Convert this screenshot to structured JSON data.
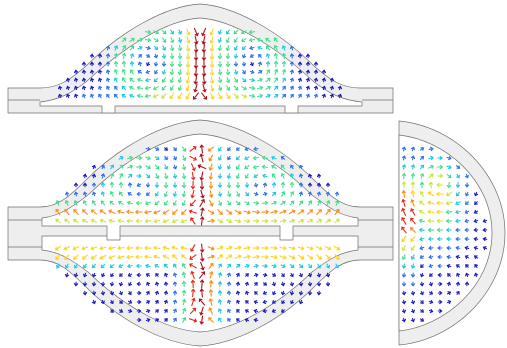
{
  "figure": {
    "views": [
      {
        "id": "top-half-section",
        "flow": "two-vortex"
      },
      {
        "id": "full-section",
        "flow": "four-vortex"
      },
      {
        "id": "side-section",
        "flow": "edge-jet"
      }
    ],
    "colormap": [
      "#1a1ac8",
      "#2a6ff0",
      "#19c8e6",
      "#3ee08a",
      "#c8e636",
      "#ffd21a",
      "#ff8a12",
      "#e8261a",
      "#b0101a"
    ],
    "wall_fill": "#eeeeee",
    "wall_stroke": "#6e6e6e",
    "background": "#ffffff"
  }
}
